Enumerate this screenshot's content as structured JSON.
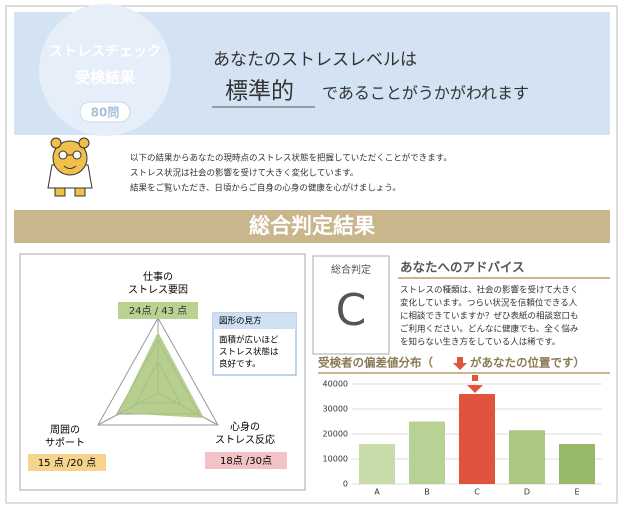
{
  "header": {
    "circle_line1": "ストレスチェック",
    "circle_line2": "受検結果",
    "badge": "80問",
    "lead": "あなたのストレスレベルは",
    "level": "標準的",
    "tail": "であることがうかがわれます"
  },
  "intro": [
    "以下の結果からあなたの現時点のストレス状態を把握していただくことができます。",
    "ストレス状況は社会の影響を受けて大きく変化しています。",
    "結果をご覧いただき、日頃からご自身の心身の健康を心がけましょう。"
  ],
  "section_title": "総合判定結果",
  "radar": {
    "axes": [
      {
        "label_line1": "仕事の",
        "label_line2": "ストレス要因",
        "score": "24点 / 43 点"
      },
      {
        "label_line1": "周囲の",
        "label_line2": "サポート",
        "score": "15 点 /20 点"
      },
      {
        "label_line1": "心身の",
        "label_line2": "ストレス反応",
        "score": "18点 /30点"
      }
    ],
    "legend_title": "図形の見方",
    "legend_lines": [
      "面積が広いほど",
      "ストレス状態は",
      "良好です。"
    ]
  },
  "judgement": {
    "label": "総合判定",
    "grade": "C"
  },
  "advice": {
    "title": "あなたへのアドバイス",
    "lines": [
      "ストレスの種類は、社会の影響を受けて大きく",
      "変化しています。つらい状況を信頼位できる人",
      "に相談できていますか？ぜひ表紙の相談窓口も",
      "ご利用ください。どんなに健康でも、全く悩み",
      "を知らない生き方をしている人は稀です。"
    ]
  },
  "distribution": {
    "type": "bar",
    "title": "受検者の偏差値分布（",
    "note": "があなたの位置です）",
    "categories": [
      "A",
      "B",
      "C",
      "D",
      "E"
    ],
    "values": [
      16000,
      25000,
      36000,
      21500,
      16000
    ],
    "colors": [
      "#c8dcaa",
      "#b8d296",
      "#e0533f",
      "#abc883",
      "#98b96c"
    ],
    "ylim": [
      0,
      40000
    ],
    "yticks": [
      0,
      10000,
      20000,
      30000,
      40000
    ],
    "grid": true
  }
}
